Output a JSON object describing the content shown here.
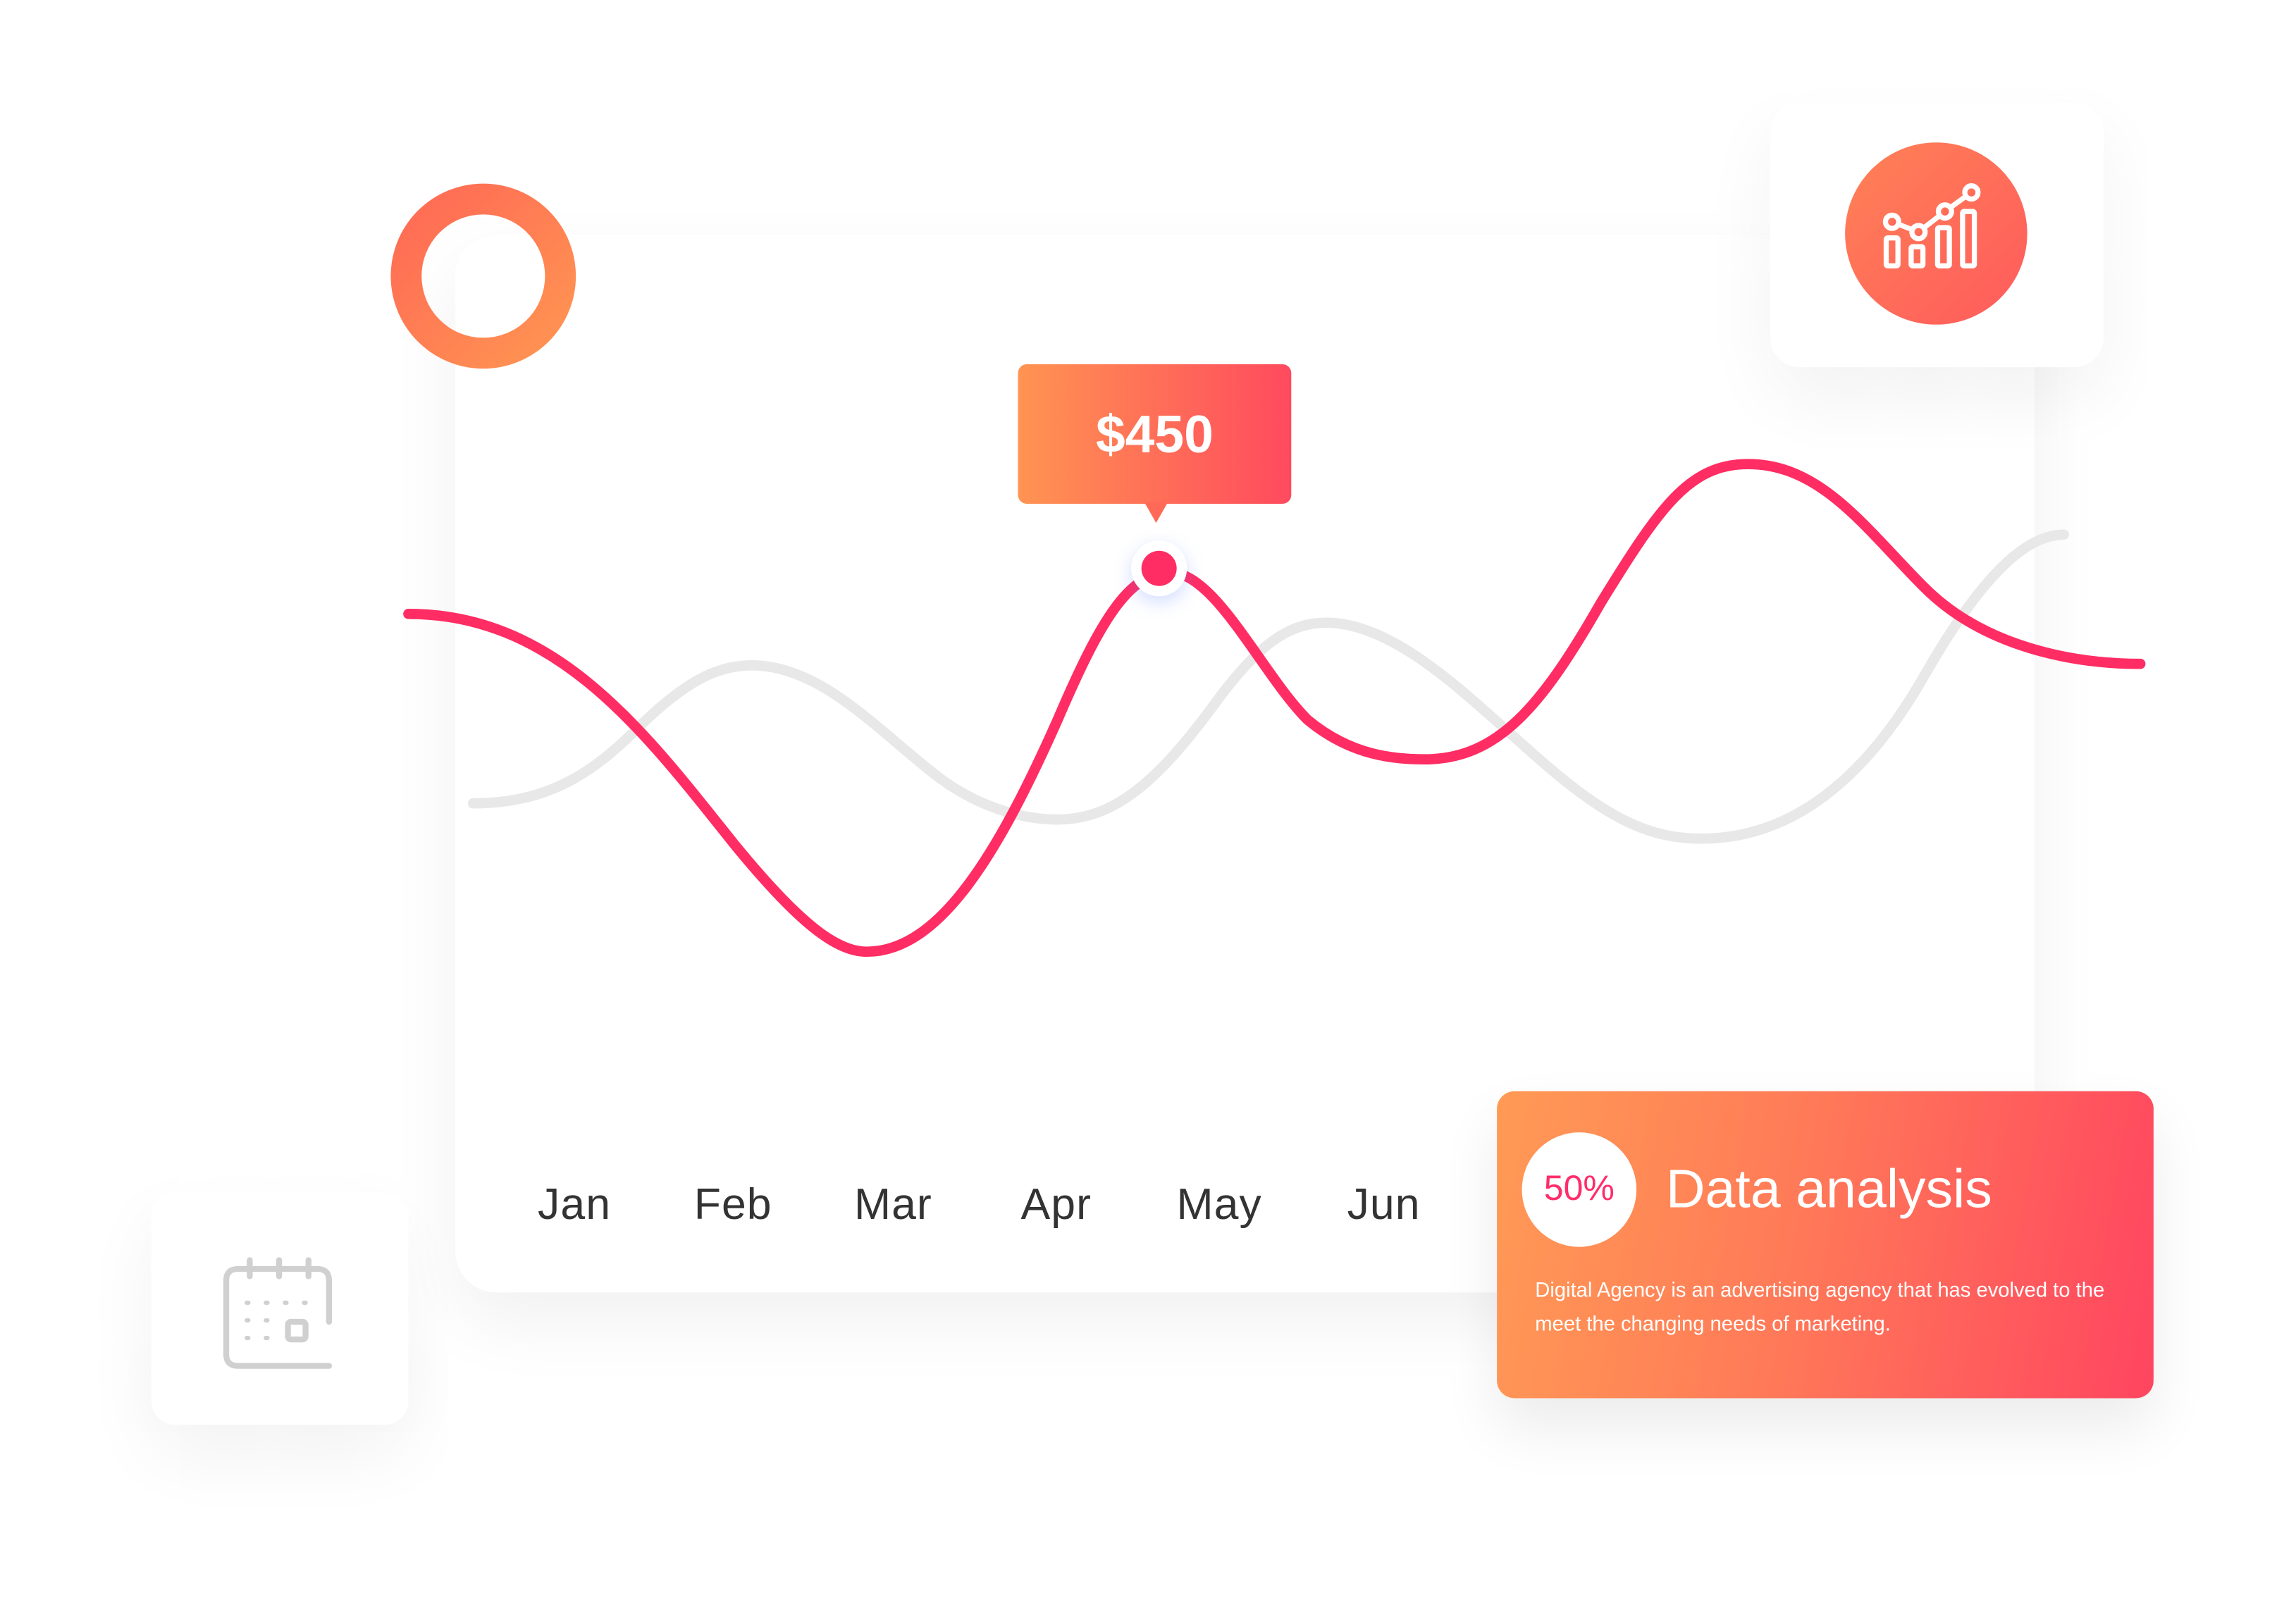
{
  "chart_data": {
    "type": "line",
    "categories": [
      "Jan",
      "Feb",
      "Mar",
      "Apr",
      "May",
      "Jun"
    ],
    "annotation": "$450",
    "series_colors": [
      "#ff2d63",
      "#e8e8e8"
    ]
  },
  "tooltip": {
    "value": "$450"
  },
  "data_card": {
    "percent": "50%",
    "title": "Data analysis",
    "description": "Digital Agency is an advertising agency that has evolved to the meet the changing needs of marketing."
  },
  "icons": {
    "top_right": "chart-analytics-icon",
    "bottom_left": "calendar-icon",
    "top_left": "ring-icon"
  },
  "colors": {
    "accent_orange": "#ff9452",
    "accent_pink": "#ff2d63",
    "muted_line": "#e8e8e8"
  }
}
